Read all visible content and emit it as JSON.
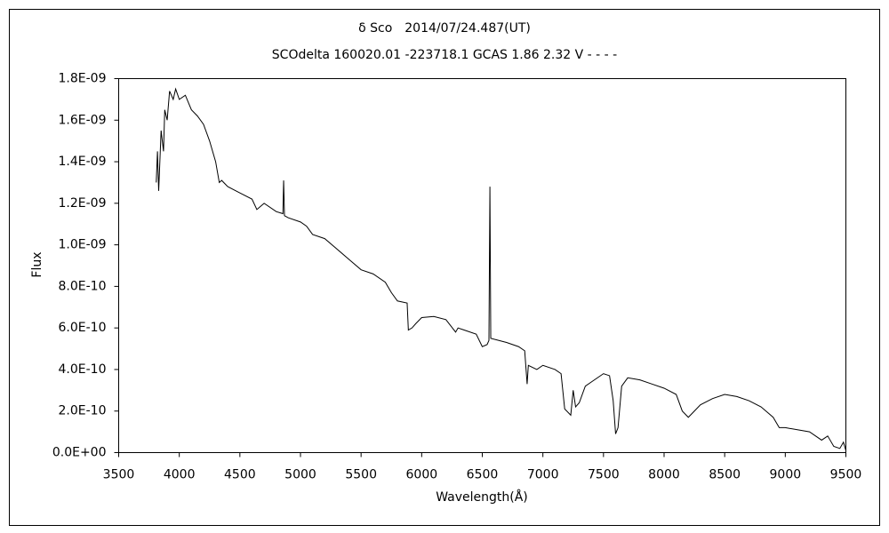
{
  "chart_data": {
    "type": "line",
    "title": "δ Sco　2014/07/24.487(UT)",
    "subtitle": "SCOdelta 160020.01 -223718.1 GCAS 1.86 2.32 V - - - -",
    "x_label": "Wavelength(Å)",
    "y_label": "Flux",
    "color": "#000000",
    "x": [
      3810,
      3820,
      3830,
      3850,
      3870,
      3880,
      3900,
      3920,
      3950,
      3970,
      4000,
      4050,
      4100,
      4150,
      4200,
      4250,
      4300,
      4330,
      4350,
      4400,
      4500,
      4600,
      4640,
      4700,
      4800,
      4855,
      4861,
      4868,
      4900,
      5000,
      5050,
      5100,
      5200,
      5300,
      5400,
      5500,
      5600,
      5700,
      5750,
      5800,
      5880,
      5890,
      5920,
      5950,
      6000,
      6100,
      6200,
      6280,
      6300,
      6350,
      6450,
      6500,
      6540,
      6555,
      6563,
      6570,
      6700,
      6800,
      6850,
      6870,
      6880,
      6950,
      7000,
      7100,
      7150,
      7180,
      7230,
      7250,
      7270,
      7300,
      7350,
      7400,
      7500,
      7550,
      7580,
      7600,
      7620,
      7650,
      7700,
      7800,
      7900,
      8000,
      8100,
      8150,
      8200,
      8250,
      8300,
      8400,
      8500,
      8600,
      8700,
      8800,
      8900,
      8950,
      9000,
      9100,
      9200,
      9300,
      9350,
      9400,
      9450,
      9480,
      9500
    ],
    "values": [
      1.3e-09,
      1.45e-09,
      1.26e-09,
      1.55e-09,
      1.45e-09,
      1.65e-09,
      1.6e-09,
      1.74e-09,
      1.7e-09,
      1.75e-09,
      1.7e-09,
      1.72e-09,
      1.65e-09,
      1.62e-09,
      1.58e-09,
      1.5e-09,
      1.4e-09,
      1.3e-09,
      1.31e-09,
      1.28e-09,
      1.25e-09,
      1.22e-09,
      1.17e-09,
      1.2e-09,
      1.16e-09,
      1.15e-09,
      1.31e-09,
      1.14e-09,
      1.13e-09,
      1.11e-09,
      1.09e-09,
      1.05e-09,
      1.03e-09,
      9.8e-10,
      9.3e-10,
      8.8e-10,
      8.6e-10,
      8.2e-10,
      7.7e-10,
      7.3e-10,
      7.2e-10,
      5.9e-10,
      6e-10,
      6.2e-10,
      6.5e-10,
      6.55e-10,
      6.4e-10,
      5.8e-10,
      6e-10,
      5.9e-10,
      5.7e-10,
      5.1e-10,
      5.2e-10,
      5.4e-10,
      1.28e-09,
      5.5e-10,
      5.3e-10,
      5.1e-10,
      4.9e-10,
      3.3e-10,
      4.2e-10,
      4e-10,
      4.2e-10,
      4e-10,
      3.8e-10,
      2.1e-10,
      1.8e-10,
      3e-10,
      2.2e-10,
      2.4e-10,
      3.2e-10,
      3.4e-10,
      3.8e-10,
      3.7e-10,
      2.5e-10,
      9e-11,
      1.2e-10,
      3.2e-10,
      3.6e-10,
      3.5e-10,
      3.3e-10,
      3.1e-10,
      2.8e-10,
      2e-10,
      1.7e-10,
      2e-10,
      2.3e-10,
      2.6e-10,
      2.8e-10,
      2.7e-10,
      2.5e-10,
      2.2e-10,
      1.7e-10,
      1.2e-10,
      1.2e-10,
      1.1e-10,
      1e-10,
      6e-11,
      8e-11,
      3e-11,
      2e-11,
      5e-11,
      1e-11
    ],
    "xlim": [
      3500,
      9500
    ],
    "xticks": [
      3500,
      4000,
      4500,
      5000,
      5500,
      6000,
      6500,
      7000,
      7500,
      8000,
      8500,
      9000,
      9500
    ],
    "ylim": [
      0,
      1.8e-09
    ],
    "yticks": [
      {
        "value": 0,
        "label": "0.0E+00"
      },
      {
        "value": 2e-10,
        "label": "2.0E-10"
      },
      {
        "value": 4e-10,
        "label": "4.0E-10"
      },
      {
        "value": 6e-10,
        "label": "6.0E-10"
      },
      {
        "value": 8e-10,
        "label": "8.0E-10"
      },
      {
        "value": 1e-09,
        "label": "1.0E-09"
      },
      {
        "value": 1.2e-09,
        "label": "1.2E-09"
      },
      {
        "value": 1.4e-09,
        "label": "1.4E-09"
      },
      {
        "value": 1.6e-09,
        "label": "1.6E-09"
      },
      {
        "value": 1.8e-09,
        "label": "1.8E-09"
      }
    ],
    "grid": false
  }
}
